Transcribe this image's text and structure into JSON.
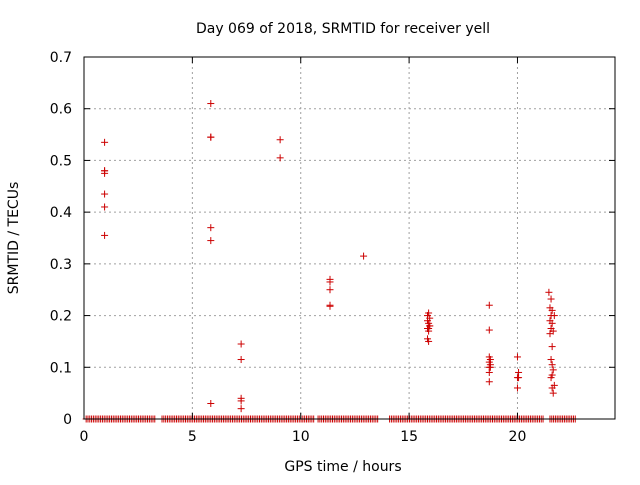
{
  "chart_data": {
    "type": "scatter",
    "title": "Day 069 of 2018, SRMTID for receiver yell",
    "xlabel": "GPS time / hours",
    "ylabel": "SRMTID / TECUs",
    "xlim": [
      0,
      24.5
    ],
    "ylim": [
      0,
      0.7
    ],
    "xticks": [
      0,
      5,
      10,
      15,
      20
    ],
    "xtick_labels": [
      "0",
      "5",
      "10",
      "15",
      "20"
    ],
    "yticks": [
      0,
      0.1,
      0.2,
      0.3,
      0.4,
      0.5,
      0.6,
      0.7
    ],
    "ytick_labels": [
      "0",
      "0.1",
      "0.2",
      "0.3",
      "0.4",
      "0.5",
      "0.6",
      "0.7"
    ],
    "grid": true,
    "marker": "plus",
    "color": "#cc0000",
    "zero_runs": [
      {
        "start": 0.1,
        "end": 3.3,
        "step": 0.0833
      },
      {
        "start": 3.6,
        "end": 10.6,
        "step": 0.0833
      },
      {
        "start": 10.8,
        "end": 13.6,
        "step": 0.0833
      },
      {
        "start": 14.1,
        "end": 21.2,
        "step": 0.0833
      },
      {
        "start": 21.5,
        "end": 22.7,
        "step": 0.0833
      }
    ],
    "series": [
      {
        "name": "SRMTID",
        "x": [
          0.95,
          0.95,
          0.95,
          0.95,
          0.95,
          0.95,
          0.95,
          5.85,
          5.85,
          5.85,
          5.85,
          5.85,
          5.85,
          7.25,
          7.25,
          7.25,
          7.25,
          7.25,
          9.05,
          9.05,
          11.35,
          11.35,
          11.35,
          11.35,
          11.35,
          12.9,
          15.85,
          15.9,
          15.85,
          15.9,
          15.95,
          15.85,
          15.9,
          15.95,
          15.85,
          15.9,
          15.95,
          15.9,
          18.7,
          18.7,
          18.7,
          18.75,
          18.7,
          18.75,
          18.7,
          18.7,
          18.75,
          18.7,
          20.0,
          20.05,
          20.0,
          20.05,
          20.0,
          21.45,
          21.55,
          21.5,
          21.6,
          21.55,
          21.5,
          21.6,
          21.55,
          21.65,
          21.5,
          21.6,
          21.55,
          21.6,
          21.65,
          21.6,
          21.55,
          21.7,
          21.6,
          21.65,
          21.7
        ],
        "y": [
          0.535,
          0.48,
          0.475,
          0.435,
          0.41,
          0.355,
          0.48,
          0.61,
          0.545,
          0.37,
          0.345,
          0.03,
          0.545,
          0.145,
          0.115,
          0.04,
          0.035,
          0.02,
          0.54,
          0.505,
          0.27,
          0.265,
          0.25,
          0.22,
          0.218,
          0.315,
          0.2,
          0.205,
          0.19,
          0.185,
          0.18,
          0.175,
          0.17,
          0.18,
          0.155,
          0.15,
          0.195,
          0.175,
          0.22,
          0.172,
          0.12,
          0.115,
          0.11,
          0.105,
          0.1,
          0.09,
          0.1,
          0.072,
          0.12,
          0.09,
          0.08,
          0.08,
          0.06,
          0.245,
          0.232,
          0.215,
          0.21,
          0.2,
          0.19,
          0.185,
          0.175,
          0.17,
          0.165,
          0.14,
          0.115,
          0.105,
          0.095,
          0.085,
          0.08,
          0.065,
          0.06,
          0.05,
          0.2
        ]
      }
    ]
  }
}
